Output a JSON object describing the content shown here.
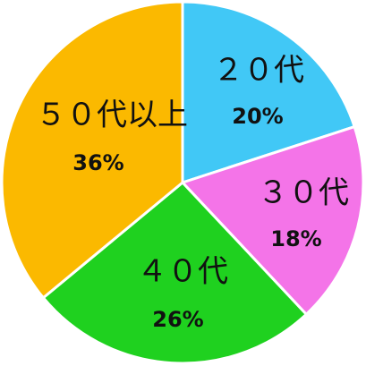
{
  "chart_data": {
    "type": "pie",
    "start_angle_deg": 0,
    "direction": "clockwise",
    "slices": [
      {
        "label": "２０代",
        "value": 20,
        "value_label": "20%",
        "color": "#41C8F6"
      },
      {
        "label": "３０代",
        "value": 18,
        "value_label": "18%",
        "color": "#F474E8"
      },
      {
        "label": "４０代",
        "value": 26,
        "value_label": "26%",
        "color": "#1FD11F"
      },
      {
        "label": "５０代以上",
        "value": 36,
        "value_label": "36%",
        "color": "#FBB900"
      }
    ],
    "title": "",
    "legend": "none"
  }
}
